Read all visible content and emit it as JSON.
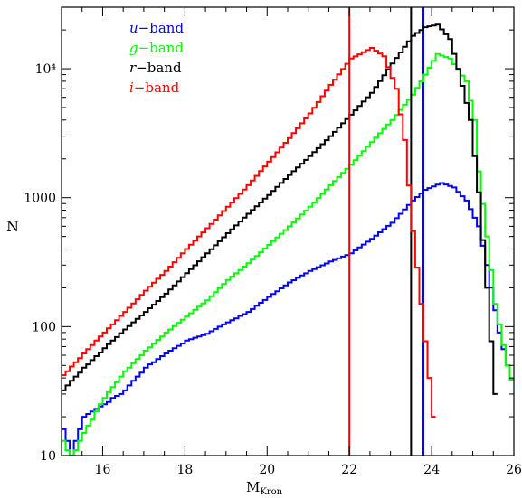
{
  "chart_data": {
    "type": "line",
    "step": true,
    "xlabel": "M",
    "xlabel_sub": "Kron",
    "ylabel": "N",
    "xlim": [
      15,
      26
    ],
    "ylim": [
      10,
      30000
    ],
    "yscale": "log",
    "xticks": [
      16,
      18,
      20,
      22,
      24,
      26
    ],
    "yticks": [
      {
        "value": 10,
        "label": "10"
      },
      {
        "value": 100,
        "label": "100"
      },
      {
        "value": 1000,
        "label": "1000"
      },
      {
        "value": 10000,
        "label": "10⁴"
      }
    ],
    "legend_position": "top-left",
    "series": [
      {
        "name": "u-band",
        "letter": "u",
        "suffix": "−band",
        "color": "#0000ff",
        "vline": 23.8,
        "points": [
          [
            15,
            16
          ],
          [
            15.2,
            10
          ],
          [
            15.5,
            20
          ],
          [
            16,
            25
          ],
          [
            16.5,
            32
          ],
          [
            17,
            48
          ],
          [
            17.5,
            62
          ],
          [
            18,
            78
          ],
          [
            18.5,
            88
          ],
          [
            19,
            108
          ],
          [
            19.5,
            130
          ],
          [
            20,
            170
          ],
          [
            20.5,
            220
          ],
          [
            21,
            270
          ],
          [
            21.5,
            320
          ],
          [
            22,
            370
          ],
          [
            22.5,
            480
          ],
          [
            23,
            640
          ],
          [
            23.5,
            950
          ],
          [
            23.8,
            1150
          ],
          [
            24.2,
            1300
          ],
          [
            24.5,
            1200
          ],
          [
            24.8,
            950
          ],
          [
            25.1,
            600
          ],
          [
            25.3,
            300
          ],
          [
            25.6,
            90
          ],
          [
            25.8,
            50
          ],
          [
            26,
            30
          ]
        ]
      },
      {
        "name": "g-band",
        "letter": "g",
        "suffix": "−band",
        "color": "#00ff00",
        "vline": null,
        "points": [
          [
            15,
            13
          ],
          [
            15.2,
            10
          ],
          [
            15.5,
            15
          ],
          [
            16,
            28
          ],
          [
            16.5,
            45
          ],
          [
            17,
            65
          ],
          [
            17.5,
            90
          ],
          [
            18,
            120
          ],
          [
            18.5,
            160
          ],
          [
            19,
            230
          ],
          [
            19.5,
            310
          ],
          [
            20,
            430
          ],
          [
            20.5,
            600
          ],
          [
            21,
            850
          ],
          [
            21.5,
            1250
          ],
          [
            22,
            1800
          ],
          [
            22.5,
            2700
          ],
          [
            23,
            4000
          ],
          [
            23.5,
            6300
          ],
          [
            23.8,
            9000
          ],
          [
            24.1,
            13000
          ],
          [
            24.4,
            12000
          ],
          [
            24.8,
            8000
          ],
          [
            25.0,
            4000
          ],
          [
            25.1,
            1600
          ],
          [
            25.3,
            500
          ],
          [
            25.5,
            150
          ],
          [
            25.8,
            50
          ],
          [
            26,
            30
          ]
        ]
      },
      {
        "name": "r-band",
        "letter": "r",
        "suffix": "−band",
        "color": "#000000",
        "vline": 23.5,
        "points": [
          [
            15,
            32
          ],
          [
            15.5,
            48
          ],
          [
            16,
            68
          ],
          [
            16.5,
            95
          ],
          [
            17,
            130
          ],
          [
            17.5,
            180
          ],
          [
            18,
            260
          ],
          [
            18.5,
            370
          ],
          [
            19,
            530
          ],
          [
            19.5,
            750
          ],
          [
            20,
            1050
          ],
          [
            20.5,
            1500
          ],
          [
            21,
            2100
          ],
          [
            21.5,
            3000
          ],
          [
            22,
            4400
          ],
          [
            22.5,
            6500
          ],
          [
            23,
            11000
          ],
          [
            23.5,
            18000
          ],
          [
            23.8,
            21000
          ],
          [
            24.1,
            22000
          ],
          [
            24.4,
            17000
          ],
          [
            24.6,
            10000
          ],
          [
            24.9,
            4000
          ],
          [
            25.1,
            1100
          ],
          [
            25.3,
            200
          ],
          [
            25.5,
            30
          ],
          [
            25.6,
            10
          ]
        ]
      },
      {
        "name": "i-band",
        "letter": "i",
        "suffix": "−band",
        "color": "#ff0000",
        "vline": 22.0,
        "points": [
          [
            15,
            42
          ],
          [
            15.5,
            62
          ],
          [
            16,
            90
          ],
          [
            16.5,
            130
          ],
          [
            17,
            190
          ],
          [
            17.5,
            270
          ],
          [
            18,
            400
          ],
          [
            18.5,
            580
          ],
          [
            19,
            850
          ],
          [
            19.5,
            1250
          ],
          [
            20,
            1900
          ],
          [
            20.5,
            2900
          ],
          [
            21,
            4500
          ],
          [
            21.5,
            7500
          ],
          [
            22,
            12000
          ],
          [
            22.5,
            14500
          ],
          [
            22.8,
            12500
          ],
          [
            23.1,
            7000
          ],
          [
            23.3,
            2800
          ],
          [
            23.5,
            550
          ],
          [
            23.7,
            150
          ],
          [
            23.9,
            40
          ],
          [
            24.1,
            10
          ]
        ]
      }
    ]
  }
}
